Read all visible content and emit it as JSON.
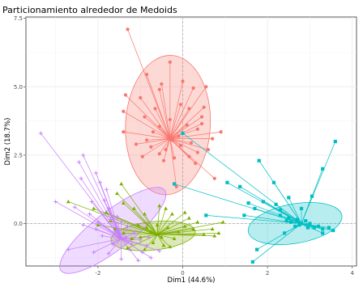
{
  "chart_data": {
    "type": "scatter",
    "title": "Particionamiento alrededor de Medoids",
    "xlabel": "Dim1 (44.6%)",
    "ylabel": "Dim2 (18.7%)",
    "xlim": [
      -3.7,
      4.1
    ],
    "ylim": [
      -1.55,
      7.55
    ],
    "x_ticks": [
      -2,
      0,
      2,
      4
    ],
    "y_ticks": [
      0.0,
      2.5,
      5.0,
      7.5
    ],
    "y_tick_labels": [
      "0.0",
      "2.5",
      "5.0",
      "7.5"
    ],
    "grid": true,
    "legend": "none",
    "series": [
      {
        "color": "#f8766d",
        "marker": "circle",
        "medoid": [
          -0.3,
          3.1
        ],
        "ellipse": {
          "cx": -0.35,
          "cy": 3.6,
          "rx": 1.0,
          "ry": 2.55,
          "angle_deg": 3
        },
        "points": [
          [
            -1.3,
            7.1
          ],
          [
            -0.3,
            5.9
          ],
          [
            0.55,
            5.0
          ],
          [
            -0.85,
            5.45
          ],
          [
            0.0,
            5.2
          ],
          [
            0.25,
            4.95
          ],
          [
            -0.5,
            5.1
          ],
          [
            -1.35,
            4.7
          ],
          [
            0.5,
            4.25
          ],
          [
            -0.05,
            4.35
          ],
          [
            0.45,
            3.9
          ],
          [
            -1.4,
            4.1
          ],
          [
            -0.65,
            4.2
          ],
          [
            0.15,
            4.2
          ],
          [
            -0.9,
            3.9
          ],
          [
            0.7,
            3.1
          ],
          [
            0.9,
            3.35
          ],
          [
            -1.4,
            3.35
          ],
          [
            0.35,
            3.45
          ],
          [
            -0.85,
            3.05
          ],
          [
            -0.55,
            3.55
          ],
          [
            0.6,
            2.7
          ],
          [
            0.35,
            2.6
          ],
          [
            -0.05,
            2.85
          ],
          [
            0.75,
            1.65
          ],
          [
            -0.15,
            1.35
          ],
          [
            -0.45,
            2.3
          ],
          [
            -0.95,
            2.45
          ],
          [
            -0.55,
            2.55
          ],
          [
            0.2,
            2.95
          ],
          [
            -1.0,
            4.6
          ],
          [
            -0.55,
            4.9
          ],
          [
            0.3,
            2.2
          ],
          [
            -0.3,
            3.8
          ],
          [
            -0.2,
            2.4
          ],
          [
            -0.1,
            3.2
          ],
          [
            0.1,
            3.6
          ],
          [
            -0.4,
            2.7
          ],
          [
            -0.7,
            3.35
          ],
          [
            0.15,
            2.45
          ],
          [
            -0.75,
            2.8
          ],
          [
            -0.25,
            3.05
          ],
          [
            0.45,
            3.65
          ],
          [
            -1.1,
            2.9
          ]
        ]
      },
      {
        "color": "#00bfc4",
        "marker": "square",
        "medoid": [
          2.8,
          0.0
        ],
        "ellipse": {
          "cx": 2.65,
          "cy": 0.0,
          "rx": 1.12,
          "ry": 0.72,
          "angle_deg": -10
        },
        "points": [
          [
            3.6,
            3.0
          ],
          [
            0.0,
            3.3
          ],
          [
            3.3,
            2.0
          ],
          [
            1.8,
            2.3
          ],
          [
            2.15,
            1.5
          ],
          [
            1.05,
            1.5
          ],
          [
            1.35,
            1.35
          ],
          [
            -0.2,
            1.45
          ],
          [
            3.05,
            1.0
          ],
          [
            1.55,
            0.75
          ],
          [
            1.9,
            0.8
          ],
          [
            2.5,
            0.95
          ],
          [
            2.2,
            0.7
          ],
          [
            1.45,
            0.3
          ],
          [
            0.55,
            0.3
          ],
          [
            1.7,
            0.55
          ],
          [
            2.3,
            0.5
          ],
          [
            2.8,
            0.55
          ],
          [
            1.65,
            -1.4
          ],
          [
            1.75,
            -0.95
          ],
          [
            2.4,
            -0.35
          ],
          [
            3.3,
            -0.35
          ],
          [
            2.3,
            0.3
          ],
          [
            2.5,
            0.2
          ],
          [
            2.7,
            0.15
          ],
          [
            2.9,
            0.1
          ],
          [
            2.55,
            0.05
          ],
          [
            2.75,
            -0.05
          ],
          [
            3.0,
            0.0
          ],
          [
            3.1,
            -0.15
          ],
          [
            3.3,
            -0.2
          ],
          [
            3.55,
            -0.25
          ],
          [
            2.95,
            -0.15
          ],
          [
            2.65,
            -0.1
          ],
          [
            3.2,
            -0.1
          ],
          [
            2.45,
            0.1
          ],
          [
            3.45,
            -0.15
          ]
        ]
      },
      {
        "color": "#7cae00",
        "marker": "triangle",
        "medoid": [
          -0.6,
          -0.4
        ],
        "ellipse": {
          "cx": -0.7,
          "cy": -0.45,
          "rx": 1.0,
          "ry": 0.52,
          "angle_deg": -6
        },
        "points": [
          [
            -2.7,
            0.8
          ],
          [
            -1.45,
            1.45
          ],
          [
            -1.55,
            1.1
          ],
          [
            -1.4,
            0.75
          ],
          [
            -2.1,
            0.55
          ],
          [
            -1.8,
            0.4
          ],
          [
            -1.15,
            0.55
          ],
          [
            -0.9,
            0.35
          ],
          [
            -0.55,
            0.65
          ],
          [
            -0.4,
            0.55
          ],
          [
            -0.25,
            0.35
          ],
          [
            0.05,
            0.4
          ],
          [
            0.15,
            0.2
          ],
          [
            0.35,
            0.05
          ],
          [
            0.7,
            -0.2
          ],
          [
            0.85,
            -0.35
          ],
          [
            0.95,
            0.05
          ],
          [
            0.75,
            -0.45
          ],
          [
            0.05,
            -0.1
          ],
          [
            -0.1,
            -0.3
          ],
          [
            -1.0,
            -0.5
          ],
          [
            -1.2,
            -0.55
          ],
          [
            -0.7,
            -0.7
          ],
          [
            -0.45,
            -0.8
          ],
          [
            -1.4,
            -0.35
          ],
          [
            -1.6,
            -0.2
          ],
          [
            -0.3,
            -0.85
          ],
          [
            -0.85,
            -0.15
          ],
          [
            -1.05,
            -0.05
          ],
          [
            -0.6,
            -0.05
          ],
          [
            -0.35,
            -0.15
          ],
          [
            -0.2,
            -0.55
          ],
          [
            -1.3,
            -0.9
          ],
          [
            -0.9,
            -0.95
          ],
          [
            0.25,
            -0.2
          ],
          [
            0.5,
            -0.4
          ],
          [
            -0.75,
            -0.3
          ],
          [
            -0.5,
            -0.5
          ],
          [
            -1.7,
            0.1
          ],
          [
            -2.0,
            -0.05
          ]
        ]
      },
      {
        "color": "#c77cff",
        "marker": "cross",
        "medoid": [
          -1.45,
          -0.55
        ],
        "ellipse": {
          "cx": -1.65,
          "cy": -0.25,
          "rx": 1.55,
          "ry": 0.7,
          "angle_deg": -38
        },
        "points": [
          [
            -3.35,
            3.3
          ],
          [
            -2.35,
            2.5
          ],
          [
            -2.45,
            2.25
          ],
          [
            -2.05,
            1.85
          ],
          [
            -2.4,
            1.65
          ],
          [
            -1.95,
            1.5
          ],
          [
            -1.8,
            1.25
          ],
          [
            -1.85,
            0.85
          ],
          [
            -2.2,
            0.35
          ],
          [
            -1.7,
            0.15
          ],
          [
            -3.0,
            0.8
          ],
          [
            -2.55,
            0.6
          ],
          [
            -2.15,
            0.8
          ],
          [
            -1.75,
            0.55
          ],
          [
            -1.55,
            0.25
          ],
          [
            -1.3,
            -0.1
          ],
          [
            -1.15,
            -0.35
          ],
          [
            -1.0,
            -0.6
          ],
          [
            -0.85,
            -0.8
          ],
          [
            -1.25,
            -0.95
          ],
          [
            -1.65,
            -0.75
          ],
          [
            -1.9,
            -0.45
          ],
          [
            -2.05,
            -0.2
          ],
          [
            -2.35,
            -0.05
          ],
          [
            -2.7,
            -0.95
          ],
          [
            -2.1,
            -1.05
          ],
          [
            -1.75,
            -1.1
          ],
          [
            -1.45,
            -1.3
          ],
          [
            -1.05,
            -1.35
          ],
          [
            -0.75,
            -1.25
          ],
          [
            -0.55,
            -1.0
          ],
          [
            -1.35,
            -0.5
          ],
          [
            -1.6,
            -0.3
          ],
          [
            -1.2,
            -0.75
          ],
          [
            -0.95,
            -1.05
          ],
          [
            -2.0,
            0.05
          ],
          [
            -1.45,
            0.05
          ],
          [
            -0.8,
            -0.5
          ]
        ]
      }
    ]
  }
}
